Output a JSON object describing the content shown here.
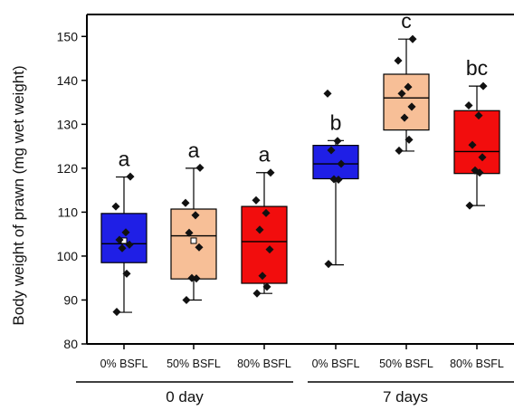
{
  "chart_data": {
    "type": "box",
    "ylabel": "Body weight of prawn (mg wet weight)",
    "ylim": [
      80,
      155
    ],
    "yticks": [
      80,
      90,
      100,
      110,
      120,
      130,
      140,
      150
    ],
    "groups": [
      {
        "label": "0 day",
        "categories": [
          0,
          1,
          2
        ]
      },
      {
        "label": "7 days",
        "categories": [
          3,
          4,
          5
        ]
      }
    ],
    "categories": [
      "0% BSFL",
      "50% BSFL",
      "80% BSFL",
      "0% BSFL",
      "50% BSFL",
      "80% BSFL"
    ],
    "boxes": [
      {
        "category": "0% BSFL",
        "group": "0 day",
        "color": "#1f1fe6",
        "whisker_low": 87.2,
        "q1": 98.5,
        "median": 102.8,
        "mean": 103.5,
        "q3": 109.7,
        "whisker_high": 118.0,
        "significance": "a",
        "points": [
          87.3,
          96.0,
          101.8,
          102.6,
          103.7,
          105.4,
          111.3,
          118.1
        ]
      },
      {
        "category": "50% BSFL",
        "group": "0 day",
        "color": "#f7bf97",
        "whisker_low": 90.0,
        "q1": 94.8,
        "median": 104.6,
        "mean": 103.5,
        "q3": 110.7,
        "whisker_high": 120.0,
        "significance": "a",
        "points": [
          90.0,
          94.9,
          95.0,
          102.0,
          105.3,
          109.3,
          112.1,
          120.1
        ]
      },
      {
        "category": "80% BSFL",
        "group": "0 day",
        "color": "#f20d0d",
        "whisker_low": 91.5,
        "q1": 93.8,
        "median": 103.3,
        "mean": null,
        "q3": 111.3,
        "whisker_high": 119.0,
        "significance": "a",
        "points": [
          91.5,
          93.0,
          95.5,
          101.5,
          106.0,
          109.8,
          112.7,
          119.0
        ]
      },
      {
        "category": "0% BSFL",
        "group": "7 days",
        "color": "#1f1fe6",
        "whisker_low": 98.0,
        "q1": 117.6,
        "median": 121.0,
        "mean": null,
        "q3": 125.2,
        "whisker_high": 126.3,
        "significance": "b",
        "points": [
          98.2,
          117.4,
          117.5,
          121.0,
          124.1,
          126.2,
          137.0
        ]
      },
      {
        "category": "50% BSFL",
        "group": "7 days",
        "color": "#f7bf97",
        "whisker_low": 123.9,
        "q1": 128.7,
        "median": 136.0,
        "mean": null,
        "q3": 141.4,
        "whisker_high": 149.4,
        "significance": "c",
        "points": [
          124.0,
          126.5,
          131.5,
          134.0,
          137.0,
          138.5,
          144.5,
          149.4
        ]
      },
      {
        "category": "80% BSFL",
        "group": "7 days",
        "color": "#f20d0d",
        "whisker_low": 111.5,
        "q1": 118.8,
        "median": 123.8,
        "mean": null,
        "q3": 133.1,
        "whisker_high": 138.7,
        "significance": "bc",
        "points": [
          111.5,
          119.0,
          119.5,
          122.5,
          125.3,
          132.0,
          134.3,
          138.7
        ]
      }
    ]
  }
}
